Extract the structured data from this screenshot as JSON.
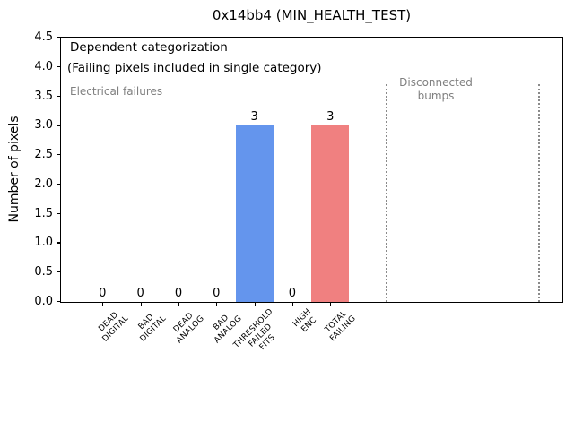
{
  "title": "0x14bb4 (MIN_HEALTH_TEST)",
  "ylabel": "Number of pixels",
  "annotations": {
    "dependent": "Dependent categorization",
    "failing_note": "(Failing pixels included in single category)",
    "electrical": "Electrical failures",
    "disconnected": [
      "Disconnected",
      "bumps"
    ]
  },
  "colors": {
    "bar_blue": "#6495ed",
    "bar_red": "#f08080",
    "annotation_gray": "#808080",
    "dotted_line_gray": "#8a8a8a",
    "axis_black": "#000000"
  },
  "chart_data": {
    "type": "bar",
    "title": "0x14bb4 (MIN_HEALTH_TEST)",
    "xlabel": "",
    "ylabel": "Number of pixels",
    "ylim": [
      0,
      4.5
    ],
    "grid": false,
    "legend": null,
    "categories": [
      "DEAD DIGITAL",
      "BAD DIGITAL",
      "DEAD ANALOG",
      "BAD ANALOG",
      "THRESHOLD FAILED FITS",
      "HIGH ENC",
      "TOTAL FAILING"
    ],
    "values": [
      0,
      0,
      0,
      0,
      3,
      0,
      3
    ],
    "value_labels": [
      "0",
      "0",
      "0",
      "0",
      "3",
      "0",
      "3"
    ],
    "bar_colors": [
      null,
      null,
      null,
      null,
      "#6495ed",
      null,
      "#f08080"
    ],
    "tick_lines": [
      [
        "DEAD",
        "DIGITAL"
      ],
      [
        "BAD",
        "DIGITAL"
      ],
      [
        "DEAD",
        "ANALOG"
      ],
      [
        "BAD",
        "ANALOG"
      ],
      [
        "THRESHOLD",
        "FAILED",
        "FITS"
      ],
      [
        "HIGH",
        "ENC"
      ],
      [
        "TOTAL",
        "FAILING"
      ]
    ],
    "ytick_labels": [
      "0.0",
      "0.5",
      "1.0",
      "1.5",
      "2.0",
      "2.5",
      "3.0",
      "3.5",
      "4.0",
      "4.5"
    ],
    "section_annotations": [
      "Electrical failures",
      "Disconnected bumps"
    ]
  }
}
